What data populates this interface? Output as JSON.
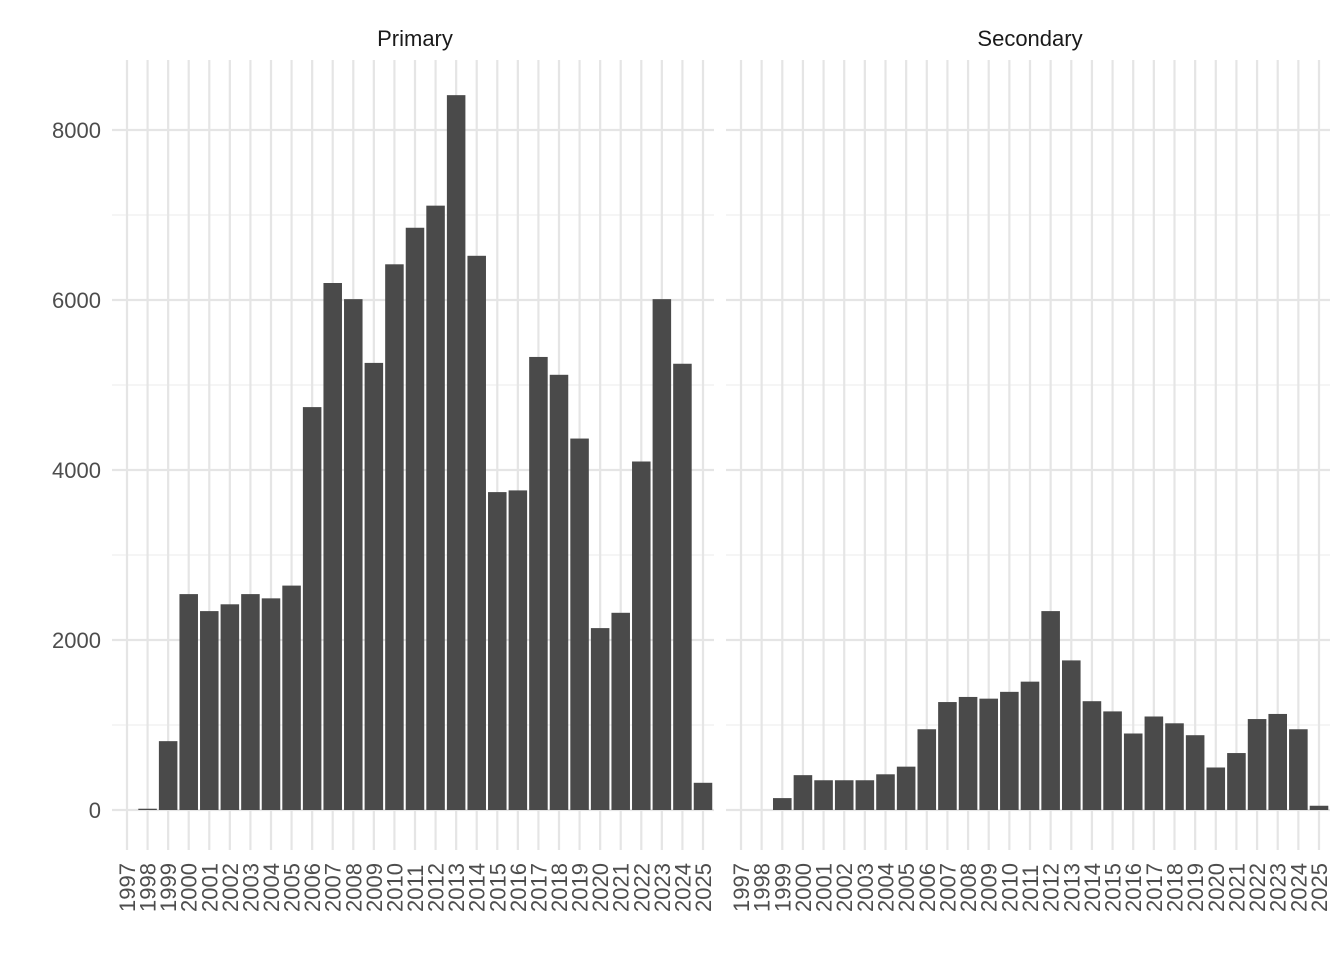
{
  "chart_data": {
    "type": "bar",
    "facets": [
      "Primary",
      "Secondary"
    ],
    "categories": [
      "1997",
      "1998",
      "1999",
      "2000",
      "2001",
      "2002",
      "2003",
      "2004",
      "2005",
      "2006",
      "2007",
      "2008",
      "2009",
      "2010",
      "2011",
      "2012",
      "2013",
      "2014",
      "2015",
      "2016",
      "2017",
      "2018",
      "2019",
      "2020",
      "2021",
      "2022",
      "2023",
      "2024",
      "2025"
    ],
    "series": [
      {
        "facet": "Primary",
        "values": [
          0,
          15,
          810,
          2540,
          2340,
          2420,
          2540,
          2490,
          2640,
          4740,
          6200,
          6010,
          5260,
          6420,
          6850,
          7110,
          8410,
          6520,
          3740,
          3760,
          5330,
          5120,
          4370,
          2140,
          2320,
          4100,
          6010,
          5250,
          320
        ]
      },
      {
        "facet": "Secondary",
        "values": [
          0,
          0,
          140,
          410,
          350,
          350,
          350,
          420,
          510,
          950,
          1270,
          1330,
          1310,
          1390,
          1510,
          2340,
          1760,
          1280,
          1160,
          900,
          1100,
          1020,
          880,
          500,
          670,
          1070,
          1130,
          950,
          50
        ]
      }
    ],
    "y_ticks": [
      0,
      2000,
      4000,
      6000,
      8000
    ],
    "ylim": [
      0,
      8800
    ],
    "title": "",
    "xlabel": "",
    "ylabel": "",
    "grid": true,
    "legend": "none",
    "colors": {
      "bar": "#4a4a4a",
      "grid_major": "#e5e5e5",
      "grid_minor": "#efefef",
      "text": "#4d4d4d",
      "strip_text": "#1a1a1a"
    }
  }
}
